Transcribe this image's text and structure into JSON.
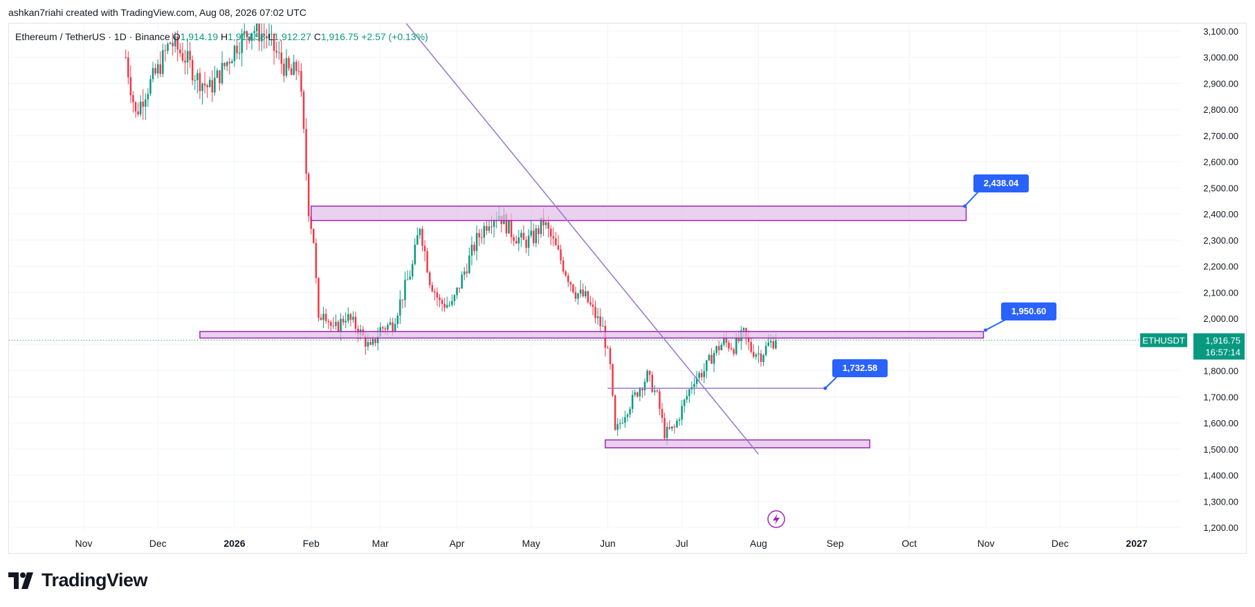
{
  "header": {
    "attribution": "ashkan7riahi created with TradingView.com, Aug 08, 2026 07:02 UTC"
  },
  "symbol": {
    "title": "Ethereum / TetherUS · 1D · Binance",
    "open_label": "O",
    "open": "1,914.19",
    "high_label": "H",
    "high": "1,919.58",
    "low_label": "L",
    "low": "1,912.27",
    "close_label": "C",
    "close": "1,916.75",
    "change": "+2.57 (+0.13%)"
  },
  "price_tag": {
    "ticker": "ETHUSDT",
    "price": "1,916.75",
    "countdown": "16:57:14"
  },
  "annotations": {
    "label_top": "2,438.04",
    "label_mid": "1,950.60",
    "label_low": "1,732.58"
  },
  "footer": {
    "brand": "TradingView"
  },
  "colors": {
    "up": "#089981",
    "down": "#f23645",
    "zone_fill": "#e1bee7",
    "zone_stroke": "#9c27b0",
    "trendline": "#9575cd",
    "label_bg": "#2962ff"
  },
  "chart_data": {
    "type": "candlestick",
    "symbol": "ETHUSDT",
    "interval": "1D",
    "ylim": [
      1200,
      3100
    ],
    "y_ticks": [
      "3,100.00",
      "3,000.00",
      "2,900.00",
      "2,800.00",
      "2,700.00",
      "2,600.00",
      "2,500.00",
      "2,400.00",
      "2,300.00",
      "2,200.00",
      "2,100.00",
      "2,000.00",
      "1,900.00",
      "1,800.00",
      "1,700.00",
      "1,600.00",
      "1,500.00",
      "1,400.00",
      "1,300.00",
      "1,200.00"
    ],
    "y_tick_values": [
      3100,
      3000,
      2900,
      2800,
      2700,
      2600,
      2500,
      2400,
      2300,
      2200,
      2100,
      2000,
      1900,
      1800,
      1700,
      1600,
      1500,
      1400,
      1300,
      1200
    ],
    "x_ticks": [
      "Nov",
      "Dec",
      "2026",
      "Feb",
      "Mar",
      "Apr",
      "May",
      "Jun",
      "Jul",
      "Aug",
      "Sep",
      "Oct",
      "Nov",
      "Dec",
      "2027"
    ],
    "x_tick_dates": [
      "2025-11-01",
      "2025-12-01",
      "2026-01-01",
      "2026-02-01",
      "2026-03-01",
      "2026-04-01",
      "2026-05-01",
      "2026-06-01",
      "2026-07-01",
      "2026-08-01",
      "2026-09-01",
      "2026-10-01",
      "2026-11-01",
      "2026-12-01",
      "2027-01-01"
    ],
    "price_path": [
      [
        "2025-11-18",
        3000
      ],
      [
        "2025-11-22",
        2780
      ],
      [
        "2025-11-26",
        2870
      ],
      [
        "2025-12-01",
        2950
      ],
      [
        "2025-12-06",
        3060
      ],
      [
        "2025-12-12",
        3000
      ],
      [
        "2025-12-17",
        2920
      ],
      [
        "2025-12-22",
        2880
      ],
      [
        "2025-12-27",
        2950
      ],
      [
        "2026-01-02",
        3050
      ],
      [
        "2026-01-08",
        3110
      ],
      [
        "2026-01-14",
        3080
      ],
      [
        "2026-01-20",
        2980
      ],
      [
        "2026-01-24",
        2930
      ],
      [
        "2026-01-27",
        2970
      ],
      [
        "2026-01-29",
        2700
      ],
      [
        "2026-01-31",
        2420
      ],
      [
        "2026-02-02",
        2300
      ],
      [
        "2026-02-04",
        1980
      ],
      [
        "2026-02-06",
        2040
      ],
      [
        "2026-02-10",
        1950
      ],
      [
        "2026-02-15",
        2010
      ],
      [
        "2026-02-20",
        1960
      ],
      [
        "2026-02-25",
        1880
      ],
      [
        "2026-03-01",
        1960
      ],
      [
        "2026-03-06",
        1980
      ],
      [
        "2026-03-10",
        2090
      ],
      [
        "2026-03-14",
        2200
      ],
      [
        "2026-03-17",
        2360
      ],
      [
        "2026-03-21",
        2150
      ],
      [
        "2026-03-25",
        2060
      ],
      [
        "2026-03-30",
        2050
      ],
      [
        "2026-04-04",
        2180
      ],
      [
        "2026-04-09",
        2300
      ],
      [
        "2026-04-14",
        2380
      ],
      [
        "2026-04-18",
        2400
      ],
      [
        "2026-04-23",
        2330
      ],
      [
        "2026-04-28",
        2290
      ],
      [
        "2026-05-02",
        2310
      ],
      [
        "2026-05-06",
        2370
      ],
      [
        "2026-05-10",
        2290
      ],
      [
        "2026-05-15",
        2180
      ],
      [
        "2026-05-19",
        2100
      ],
      [
        "2026-05-23",
        2080
      ],
      [
        "2026-05-27",
        2010
      ],
      [
        "2026-05-30",
        1960
      ],
      [
        "2026-06-02",
        1810
      ],
      [
        "2026-06-04",
        1560
      ],
      [
        "2026-06-08",
        1640
      ],
      [
        "2026-06-13",
        1720
      ],
      [
        "2026-06-17",
        1780
      ],
      [
        "2026-06-21",
        1700
      ],
      [
        "2026-06-24",
        1560
      ],
      [
        "2026-06-28",
        1580
      ],
      [
        "2026-07-02",
        1680
      ],
      [
        "2026-07-06",
        1770
      ],
      [
        "2026-07-10",
        1800
      ],
      [
        "2026-07-14",
        1870
      ],
      [
        "2026-07-18",
        1910
      ],
      [
        "2026-07-22",
        1890
      ],
      [
        "2026-07-26",
        1940
      ],
      [
        "2026-07-29",
        1880
      ],
      [
        "2026-08-02",
        1860
      ],
      [
        "2026-08-05",
        1900
      ],
      [
        "2026-08-08",
        1917
      ]
    ],
    "zones": [
      {
        "from": "2026-02-01",
        "to": "2026-10-24",
        "low": 2375,
        "high": 2430
      },
      {
        "from": "2025-12-18",
        "to": "2026-10-31",
        "low": 1925,
        "high": 1950
      },
      {
        "from": "2026-05-31",
        "to": "2026-09-15",
        "low": 1505,
        "high": 1535
      }
    ],
    "trendline": {
      "from": [
        "2026-03-11",
        3135
      ],
      "to": [
        "2026-08-01",
        1480
      ]
    },
    "hline": {
      "from": "2026-06-01",
      "to": "2026-08-28",
      "value": 1732.58
    },
    "last_price": 1916.75
  }
}
